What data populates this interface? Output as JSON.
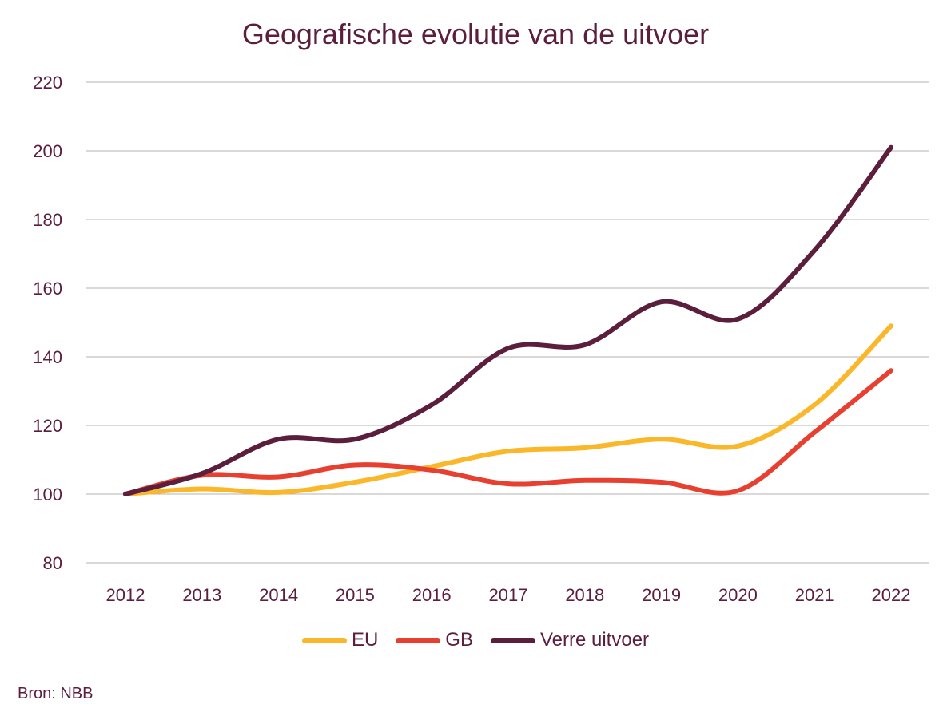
{
  "chart_data": {
    "type": "line",
    "title": "Geografische evolutie van de uitvoer",
    "categories": [
      "2012",
      "2013",
      "2014",
      "2015",
      "2016",
      "2017",
      "2018",
      "2019",
      "2020",
      "2021",
      "2022"
    ],
    "ylim": [
      80,
      220
    ],
    "yticks": [
      80,
      100,
      120,
      140,
      160,
      180,
      200,
      220
    ],
    "series": [
      {
        "name": "EU",
        "color": "#fbb72a",
        "values": [
          100,
          101.5,
          100.5,
          103.5,
          108,
          112.5,
          113.5,
          116,
          114,
          126,
          149
        ]
      },
      {
        "name": "GB",
        "color": "#e84030",
        "values": [
          100,
          105.5,
          105,
          108.5,
          107,
          103,
          104,
          103.5,
          101,
          118,
          136
        ]
      },
      {
        "name": "Verre uitvoer",
        "color": "#5b1f3d",
        "values": [
          100,
          106,
          116,
          116,
          126,
          142.5,
          143.5,
          156,
          151,
          171,
          201
        ]
      }
    ],
    "grid": true,
    "legend": "bottom"
  },
  "source": "Bron: NBB"
}
